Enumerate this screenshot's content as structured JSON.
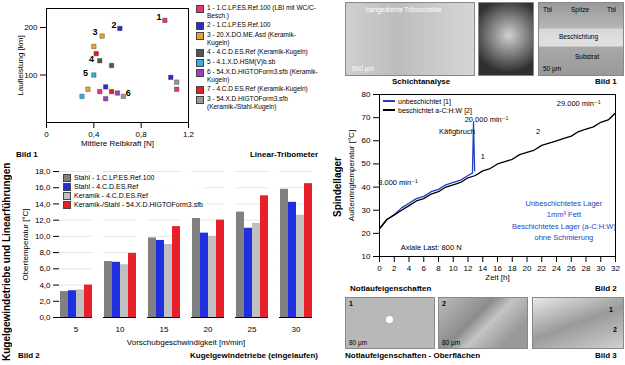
{
  "chart_data": [
    {
      "type": "scatter",
      "title": "Linear-Tribometer",
      "caption": "Bild 1",
      "x_label": "Mittlere Reibkraft [N]",
      "y_label": "Laufleistung [km]",
      "xlim": [
        0,
        1.2
      ],
      "xticks": [
        0,
        {
          "value": 0.4,
          "label": "0,4"
        },
        {
          "value": 0.8,
          "label": "0,8"
        },
        {
          "value": 1.2,
          "label": "1,2"
        }
      ],
      "ylim": [
        0,
        240
      ],
      "yticks": [
        100,
        200
      ],
      "grid": false,
      "series": [
        {
          "name": "1 - 1.C.LP.ES.Ref.100 (LBI mit WC/C-Besch.)",
          "color": "#e8337a",
          "x": [
            1.0,
            1.1,
            0.45
          ],
          "values": [
            215,
            70,
            65
          ]
        },
        {
          "name": "2 - 1.C.LP.ES.Ref.100",
          "color": "#2a2ad0",
          "x": [
            0.62,
            0.5,
            1.05
          ],
          "values": [
            198,
            75,
            95
          ]
        },
        {
          "name": "3 - 20.X.DO.ME.Asd (Keramik-Kugeln)",
          "color": "#f0a030",
          "x": [
            0.47,
            0.4,
            0.35
          ],
          "values": [
            182,
            160,
            70
          ]
        },
        {
          "name": "4 - 4.C.D.ES.Ref (Keramik-Kugeln)",
          "color": "#555555",
          "x": [
            0.45,
            0.55
          ],
          "values": [
            130,
            120
          ]
        },
        {
          "name": "5 - 4.1.X.D.HSM(V)b.sb",
          "color": "#30b0e0",
          "x": [
            0.4,
            0.3
          ],
          "values": [
            100,
            55
          ]
        },
        {
          "name": "6 - 54.X.D.HIGTOForm3.sfb (Keramik-Kugeln)",
          "color": "#a040c0",
          "x": [
            0.6,
            0.5
          ],
          "values": [
            62,
            50
          ]
        },
        {
          "name": "7 - 4.C.D.ES.Ref (Keramik-Kugeln)",
          "color": "#e02020",
          "x": [
            0.42,
            0.55
          ],
          "values": [
            145,
            65
          ]
        },
        {
          "name": "3 - 54.X.D.HIGTOForm3.sfb (Keramik-/Stahl-Kugeln)",
          "color": "#999999",
          "x": [
            1.1,
            0.65
          ],
          "values": [
            85,
            55
          ]
        }
      ],
      "annotations": [
        {
          "text": "1",
          "x": 0.95,
          "y": 222
        },
        {
          "text": "2",
          "x": 0.57,
          "y": 206
        },
        {
          "text": "3",
          "x": 0.41,
          "y": 190
        },
        {
          "text": "4",
          "x": 0.38,
          "y": 133
        },
        {
          "text": "5",
          "x": 0.33,
          "y": 103
        },
        {
          "text": "6",
          "x": 0.69,
          "y": 62
        }
      ]
    },
    {
      "type": "bar",
      "title": "Kugelgewindetriebe (eingelaufen)",
      "caption": "Bild 2",
      "x_label": "Vorschubgeschwindigkeit [m/min]",
      "y_label": "Obertemperatur [°C]",
      "categories": [
        "5",
        "10",
        "15",
        "20",
        "25",
        "30"
      ],
      "ylim": [
        0,
        18
      ],
      "yticks": [
        {
          "value": 0,
          "label": "0,0"
        },
        {
          "value": 2,
          "label": "2,0"
        },
        {
          "value": 4,
          "label": "4,0"
        },
        {
          "value": 6,
          "label": "6,0"
        },
        {
          "value": 8,
          "label": "8,0"
        },
        {
          "value": 10,
          "label": "10,0"
        },
        {
          "value": 12,
          "label": "12,0"
        },
        {
          "value": 14,
          "label": "14,0"
        },
        {
          "value": 16,
          "label": "16,0"
        },
        {
          "value": 18,
          "label": "18,0"
        }
      ],
      "grid": true,
      "legend": "top-left",
      "series": [
        {
          "name": "Stahl - 1.C.LP.ES.Ref.100",
          "color": "#808080",
          "values": [
            3.2,
            6.9,
            9.8,
            12.2,
            13.0,
            15.8
          ]
        },
        {
          "name": "Stahl - 4.C.D.ES.Ref",
          "color": "#1f2fe0",
          "values": [
            3.3,
            6.8,
            9.5,
            10.4,
            11.0,
            14.2
          ]
        },
        {
          "name": "Keramik - 4.C.D.ES.Ref",
          "color": "#c0c0c0",
          "values": [
            3.4,
            6.5,
            9.0,
            10.0,
            11.6,
            12.6
          ]
        },
        {
          "name": "Keramik-/Stahl - 54.X.D.HIGTOForm3.sfb",
          "color": "#e8202a",
          "values": [
            4.0,
            7.9,
            11.2,
            12.0,
            15.0,
            16.5
          ]
        }
      ]
    },
    {
      "type": "line",
      "title": "Notlaufeigenschaften",
      "caption": "Bild 2",
      "x_label": "Zeit [h]",
      "y_label": "Außenringtemperatur [°C]",
      "xlim": [
        0,
        32
      ],
      "xticks": [
        0,
        2,
        4,
        6,
        8,
        10,
        12,
        14,
        16,
        18,
        20,
        22,
        24,
        26,
        28,
        30,
        32
      ],
      "ylim": [
        10,
        80
      ],
      "yticks": [
        10,
        20,
        30,
        40,
        50,
        60,
        70,
        80
      ],
      "grid": false,
      "legend": "top-left",
      "series": [
        {
          "name": "unbeschichtet [1]",
          "color": "#1f3fbf",
          "x": [
            0,
            1,
            2,
            3,
            4,
            5,
            6,
            7,
            8,
            9,
            10,
            11,
            12,
            12.6,
            12.75,
            12.9
          ],
          "values": [
            22,
            26,
            28,
            31,
            33,
            35,
            36,
            38,
            39,
            41,
            42,
            43,
            45,
            46,
            68,
            47
          ]
        },
        {
          "name": "beschichtet a-C:H:W [2]",
          "color": "#000000",
          "x": [
            0,
            1,
            2,
            3,
            4,
            5,
            6,
            7,
            8,
            9,
            10,
            11,
            12,
            13,
            14,
            15,
            16,
            17,
            18,
            19,
            20,
            21,
            22,
            23,
            24,
            25,
            26,
            27,
            28,
            29,
            30,
            31,
            32
          ],
          "values": [
            22,
            26,
            28,
            30,
            32,
            34,
            35,
            37,
            38,
            40,
            41,
            42,
            44,
            45,
            47,
            48,
            50,
            51,
            52,
            54,
            55,
            56,
            58,
            59,
            60,
            61,
            62,
            64,
            65,
            66,
            68,
            69,
            72
          ]
        }
      ],
      "annotations": [
        {
          "text": "8.000 min⁻¹",
          "x": 2.5,
          "y": 42
        },
        {
          "text": "20.000 min⁻¹",
          "x": 14.5,
          "y": 69
        },
        {
          "text": "29.000 min⁻¹",
          "x": 27,
          "y": 76
        },
        {
          "text": "Käfigbruch",
          "x": 10.5,
          "y": 64
        },
        {
          "text": "1",
          "x": 14,
          "y": 53
        },
        {
          "text": "2",
          "x": 21.5,
          "y": 64
        },
        {
          "text": "Unbeschichtetes Lager",
          "x": 25,
          "y": 33,
          "color": "#1f3fbf"
        },
        {
          "text": "1mm³ Fett",
          "x": 25,
          "y": 28,
          "color": "#1f3fbf"
        },
        {
          "text": "Beschichtetes Lager (a-C:H:W)",
          "x": 25,
          "y": 23,
          "color": "#1f3fbf"
        },
        {
          "text": "ohne Schmierung",
          "x": 25,
          "y": 18,
          "color": "#1f3fbf"
        },
        {
          "text": "Axiale Last: 800 N",
          "x": 7,
          "y": 14
        }
      ]
    }
  ],
  "labels": {
    "left_section": "Kugelgewindetriebe und Linearführungen",
    "right_section": "Spindellager",
    "schichtanalyse": {
      "title": "Schichtanalyse",
      "caption": "Bild 1",
      "image1": [
        "hartgedrehte Triboscheibe",
        "500 µm"
      ],
      "image3": [
        "Tbl",
        "Spitze",
        "Tbl",
        "Beschichtung",
        "Substrat",
        "50 µm"
      ]
    },
    "oberflaechen": {
      "title": "Notlaufeigenschaften - Oberflächen",
      "caption": "Bild 3",
      "images": [
        {
          "number": "1",
          "scale": "80 µm"
        },
        {
          "number": "2",
          "scale": "80 µm"
        },
        {
          "numbers": [
            "1",
            "2"
          ]
        }
      ]
    }
  }
}
